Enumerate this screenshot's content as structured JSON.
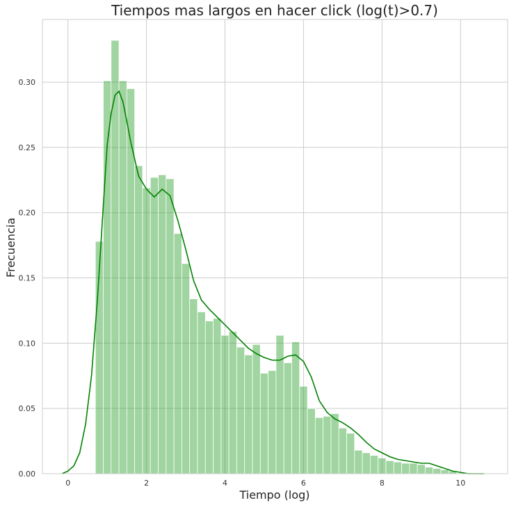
{
  "chart_data": {
    "type": "bar",
    "title": "Tiempos mas largos en hacer click (log(t)>0.7)",
    "xlabel": "Tiempo (log)",
    "ylabel": "Frecuencia",
    "xlim": [
      -0.65,
      11.2
    ],
    "ylim": [
      0,
      0.348
    ],
    "xticks": [
      0,
      2,
      4,
      6,
      8,
      10
    ],
    "xtick_labels": [
      "0",
      "2",
      "4",
      "6",
      "8",
      "10"
    ],
    "yticks": [
      0.0,
      0.05,
      0.1,
      0.15,
      0.2,
      0.25,
      0.3
    ],
    "ytick_labels": [
      "0.00",
      "0.05",
      "0.10",
      "0.15",
      "0.20",
      "0.25",
      "0.30"
    ],
    "grid": true,
    "bar_color": "#2ca02c",
    "bar_opacity": 0.45,
    "bin_edges": [
      0.7,
      0.9,
      1.1,
      1.3,
      1.5,
      1.7,
      1.9,
      2.1,
      2.3,
      2.5,
      2.7,
      2.9,
      3.1,
      3.3,
      3.5,
      3.7,
      3.9,
      4.1,
      4.3,
      4.5,
      4.7,
      4.9,
      5.1,
      5.3,
      5.5,
      5.7,
      5.9,
      6.1,
      6.3,
      6.5,
      6.7,
      6.9,
      7.1,
      7.3,
      7.5,
      7.7,
      7.9,
      8.1,
      8.3,
      8.5,
      8.7,
      8.9,
      9.1,
      9.3,
      9.5,
      9.7,
      9.9
    ],
    "values": [
      0.178,
      0.301,
      0.332,
      0.301,
      0.295,
      0.236,
      0.219,
      0.227,
      0.229,
      0.226,
      0.184,
      0.161,
      0.134,
      0.124,
      0.117,
      0.119,
      0.106,
      0.109,
      0.097,
      0.091,
      0.099,
      0.077,
      0.079,
      0.106,
      0.085,
      0.101,
      0.067,
      0.05,
      0.043,
      0.044,
      0.046,
      0.035,
      0.031,
      0.018,
      0.016,
      0.014,
      0.012,
      0.01,
      0.009,
      0.008,
      0.008,
      0.007,
      0.005,
      0.004,
      0.003,
      0.002
    ],
    "kde": {
      "name": "KDE",
      "color": "#008000",
      "x": [
        -0.15,
        0.0,
        0.15,
        0.3,
        0.45,
        0.6,
        0.75,
        0.9,
        1.0,
        1.1,
        1.2,
        1.3,
        1.4,
        1.5,
        1.6,
        1.8,
        2.0,
        2.2,
        2.4,
        2.6,
        2.8,
        3.0,
        3.2,
        3.4,
        3.6,
        3.8,
        4.0,
        4.2,
        4.4,
        4.6,
        4.8,
        5.0,
        5.2,
        5.4,
        5.6,
        5.8,
        6.0,
        6.2,
        6.4,
        6.6,
        6.8,
        7.0,
        7.2,
        7.4,
        7.6,
        7.8,
        8.0,
        8.2,
        8.4,
        8.6,
        8.8,
        9.0,
        9.2,
        9.4,
        9.6,
        9.8,
        10.0,
        10.2,
        10.4,
        10.6
      ],
      "y": [
        0.0,
        0.002,
        0.006,
        0.016,
        0.038,
        0.075,
        0.133,
        0.205,
        0.252,
        0.276,
        0.29,
        0.293,
        0.285,
        0.27,
        0.254,
        0.228,
        0.218,
        0.212,
        0.218,
        0.213,
        0.194,
        0.172,
        0.148,
        0.133,
        0.126,
        0.12,
        0.114,
        0.108,
        0.102,
        0.096,
        0.092,
        0.089,
        0.087,
        0.087,
        0.09,
        0.091,
        0.086,
        0.074,
        0.056,
        0.047,
        0.042,
        0.039,
        0.035,
        0.03,
        0.024,
        0.019,
        0.016,
        0.013,
        0.011,
        0.01,
        0.009,
        0.008,
        0.008,
        0.006,
        0.004,
        0.002,
        0.001,
        0.0,
        0.0,
        0.0
      ]
    }
  }
}
